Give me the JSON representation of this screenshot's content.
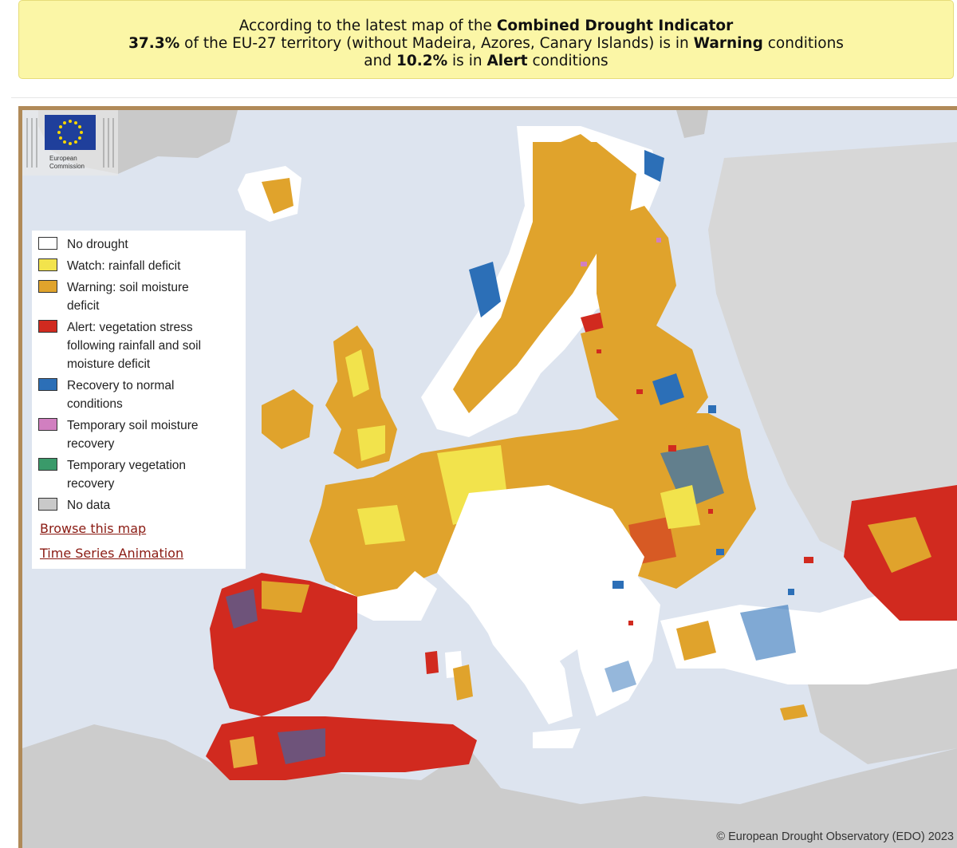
{
  "banner": {
    "line1_prefix": "According to the latest map of the ",
    "line1_bold": "Combined Drought Indicator",
    "line2_pct": "37.3%",
    "line2_mid": " of the EU-27 territory (without Madeira, Azores, Canary Islands) is in ",
    "line2_bold": "Warning",
    "line2_end": " conditions",
    "line3_pre": "and ",
    "line3_pct": "10.2%",
    "line3_mid": " is in ",
    "line3_bold": "Alert",
    "line3_end": " conditions"
  },
  "legend": {
    "items": [
      {
        "label": "No drought",
        "color": "#ffffff"
      },
      {
        "label": "Watch: rainfall deficit",
        "color": "#f2e34c"
      },
      {
        "label": "Warning: soil moisture deficit",
        "color": "#e0a32c"
      },
      {
        "label": "Alert: vegetation stress following rainfall and soil moisture deficit",
        "color": "#d12a1f"
      },
      {
        "label": "Recovery to normal conditions",
        "color": "#2c6fb7"
      },
      {
        "label": "Temporary soil moisture recovery",
        "color": "#d17fc0"
      },
      {
        "label": "Temporary vegetation recovery",
        "color": "#3a9a6a"
      },
      {
        "label": "No data",
        "color": "#c9c9c9"
      }
    ],
    "links": {
      "browse": "Browse this map",
      "animation": "Time Series Animation"
    }
  },
  "map": {
    "copyright": "© European Drought Observatory (EDO) 2023",
    "logo_text_1": "European",
    "logo_text_2": "Commission",
    "colors": {
      "sea": "#dde4ef",
      "nodata": "#c9c9c9",
      "nodrought": "#ffffff",
      "watch": "#f2e34c",
      "warning": "#e0a32c",
      "alert": "#d12a1f",
      "recovery": "#2c6fb7",
      "frame": "#b08a58"
    }
  }
}
